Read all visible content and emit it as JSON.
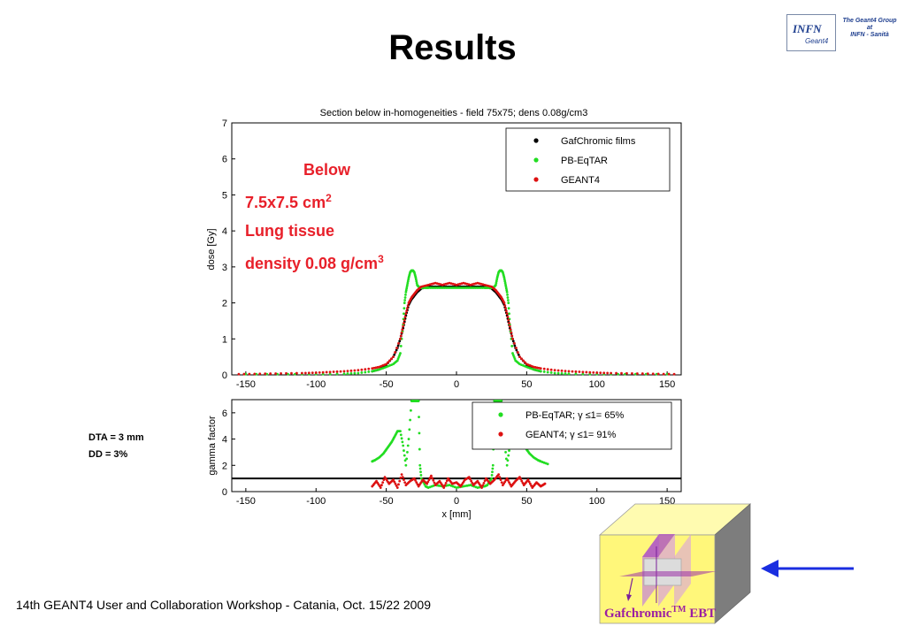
{
  "slide_title": "Results",
  "logo": {
    "infn": "INFN",
    "geant": "Geant4",
    "caption_lines": [
      "The Geant4 Group",
      "at",
      "INFN - Sanità"
    ]
  },
  "annotation": {
    "lines": [
      "Below",
      "7.5x7.5 cm",
      "Lung tissue",
      "density 0.08 g/cm"
    ],
    "superscripts": [
      "",
      "2",
      "",
      "3"
    ]
  },
  "criteria": [
    "DTA = 3 mm",
    "DD = 3%"
  ],
  "footer": "14th GEANT4 User and Collaboration Workshop - Catania, Oct. 15/22 2009",
  "film_caption": {
    "text": "Gafchromic",
    "sup": "TM",
    "suffix": " EBT"
  },
  "colors": {
    "annotation": "#e8202a",
    "films": "#000000",
    "pb": "#22dd22",
    "geant": "#dd1111",
    "arrow": "#1a2ee0",
    "film_caption": "#9b1fa2"
  },
  "icons": [
    "detector-phantom-icon",
    "beam-arrow-icon"
  ],
  "chart_data": [
    {
      "type": "scatter",
      "title": "Section below in-homogeneities  - field 75x75; dens 0.08g/cm3",
      "xlabel": "",
      "ylabel": "dose [Gy]",
      "xlim": [
        -160,
        160
      ],
      "ylim": [
        0,
        7
      ],
      "xticks": [
        -150,
        -100,
        -50,
        0,
        50,
        100,
        150
      ],
      "yticks": [
        0,
        1,
        2,
        3,
        4,
        5,
        6,
        7
      ],
      "legend_position": "top-right",
      "series": [
        {
          "name": "GafChromic films",
          "color": "#000000",
          "x": [
            -60,
            -55,
            -50,
            -45,
            -42,
            -40,
            -38,
            -36,
            -34,
            -32,
            -30,
            -28,
            -25,
            -20,
            -15,
            -10,
            -5,
            0,
            5,
            10,
            15,
            20,
            25,
            28,
            30,
            32,
            34,
            36,
            38,
            40,
            42,
            45,
            50,
            55,
            60
          ],
          "y": [
            0.1,
            0.15,
            0.28,
            0.5,
            0.75,
            1.0,
            1.3,
            1.65,
            1.95,
            2.1,
            2.2,
            2.3,
            2.4,
            2.45,
            2.45,
            2.45,
            2.45,
            2.45,
            2.45,
            2.45,
            2.45,
            2.45,
            2.4,
            2.3,
            2.2,
            2.1,
            1.95,
            1.65,
            1.3,
            1.0,
            0.75,
            0.5,
            0.28,
            0.15,
            0.1
          ]
        },
        {
          "name": "PB-EqTAR",
          "color": "#22dd22",
          "x": [
            -150,
            -120,
            -100,
            -80,
            -70,
            -60,
            -55,
            -50,
            -45,
            -42,
            -40,
            -38,
            -37,
            -36,
            -35,
            -34,
            -33,
            -32,
            -31,
            -30,
            -29,
            -28,
            -27,
            -26,
            -25,
            -22,
            -20,
            -15,
            -10,
            -5,
            0,
            5,
            10,
            15,
            20,
            22,
            25,
            26,
            27,
            28,
            29,
            30,
            31,
            32,
            33,
            34,
            35,
            36,
            37,
            38,
            40,
            42,
            45,
            50,
            55,
            60,
            70,
            80,
            100,
            120,
            150
          ],
          "y": [
            0.02,
            0.02,
            0.02,
            0.03,
            0.05,
            0.1,
            0.15,
            0.22,
            0.3,
            0.4,
            0.6,
            1.4,
            2.0,
            2.3,
            2.5,
            2.7,
            2.85,
            2.9,
            2.9,
            2.85,
            2.7,
            2.5,
            2.45,
            2.42,
            2.42,
            2.42,
            2.42,
            2.42,
            2.42,
            2.42,
            2.42,
            2.42,
            2.42,
            2.42,
            2.42,
            2.42,
            2.42,
            2.42,
            2.45,
            2.5,
            2.7,
            2.85,
            2.9,
            2.9,
            2.85,
            2.7,
            2.5,
            2.3,
            2.0,
            1.4,
            0.6,
            0.4,
            0.3,
            0.22,
            0.15,
            0.1,
            0.05,
            0.03,
            0.02,
            0.02,
            0.02
          ]
        },
        {
          "name": "GEANT4",
          "color": "#dd1111",
          "x": [
            -155,
            -140,
            -125,
            -110,
            -100,
            -90,
            -80,
            -70,
            -60,
            -55,
            -50,
            -45,
            -40,
            -38,
            -36,
            -34,
            -32,
            -30,
            -28,
            -25,
            -20,
            -15,
            -10,
            -5,
            0,
            5,
            10,
            15,
            20,
            25,
            28,
            30,
            32,
            34,
            36,
            38,
            40,
            45,
            50,
            55,
            60,
            70,
            80,
            90,
            100,
            110,
            125,
            140,
            155
          ],
          "y": [
            0.02,
            0.03,
            0.04,
            0.05,
            0.06,
            0.08,
            0.1,
            0.13,
            0.18,
            0.22,
            0.3,
            0.5,
            1.0,
            1.35,
            1.7,
            2.0,
            2.15,
            2.25,
            2.35,
            2.45,
            2.5,
            2.55,
            2.5,
            2.55,
            2.5,
            2.55,
            2.5,
            2.55,
            2.5,
            2.45,
            2.35,
            2.25,
            2.15,
            2.0,
            1.7,
            1.35,
            1.0,
            0.5,
            0.3,
            0.22,
            0.18,
            0.13,
            0.1,
            0.08,
            0.06,
            0.05,
            0.04,
            0.03,
            0.02
          ]
        }
      ]
    },
    {
      "type": "scatter",
      "title": "",
      "xlabel": "x [mm]",
      "ylabel": "gamma factor",
      "xlim": [
        -160,
        160
      ],
      "ylim": [
        0,
        7
      ],
      "xticks": [
        -150,
        -100,
        -50,
        0,
        50,
        100,
        150
      ],
      "yticks": [
        0,
        2,
        4,
        6
      ],
      "reference_line": 1,
      "legend_position": "top-right",
      "series": [
        {
          "name": "PB-EqTAR; γ ≤1= 65%",
          "color": "#22dd22",
          "x": [
            -60,
            -58,
            -55,
            -52,
            -50,
            -48,
            -46,
            -44,
            -42,
            -40,
            -38,
            -36,
            -34,
            -32,
            -31,
            -30,
            -29,
            -28,
            -27,
            -26,
            -25,
            -22,
            -20,
            -15,
            -10,
            -5,
            0,
            5,
            10,
            15,
            20,
            22,
            25,
            26,
            27,
            28,
            29,
            30,
            31,
            32,
            34,
            36,
            38,
            40,
            42,
            44,
            46,
            48,
            50,
            52,
            55,
            58,
            60,
            65
          ],
          "y": [
            2.3,
            2.4,
            2.6,
            2.9,
            3.2,
            3.5,
            3.8,
            4.2,
            4.6,
            4.6,
            3.5,
            2.0,
            4.0,
            6.9,
            6.9,
            6.9,
            6.9,
            6.9,
            6.9,
            2.0,
            1.0,
            0.4,
            0.3,
            0.5,
            0.4,
            0.5,
            0.3,
            0.4,
            0.5,
            0.3,
            0.4,
            0.5,
            1.0,
            2.0,
            6.9,
            6.9,
            6.9,
            6.9,
            6.9,
            6.9,
            4.0,
            2.0,
            3.5,
            4.6,
            4.6,
            4.2,
            3.8,
            3.5,
            3.2,
            2.9,
            2.6,
            2.4,
            2.3,
            2.1
          ]
        },
        {
          "name": "GEANT4; γ ≤1= 91%",
          "color": "#dd1111",
          "x": [
            -60,
            -57,
            -54,
            -51,
            -48,
            -45,
            -42,
            -39,
            -36,
            -33,
            -30,
            -27,
            -24,
            -21,
            -18,
            -15,
            -12,
            -9,
            -6,
            -3,
            0,
            3,
            6,
            9,
            12,
            15,
            18,
            21,
            24,
            27,
            30,
            33,
            36,
            39,
            42,
            45,
            48,
            51,
            54,
            57,
            60,
            63
          ],
          "y": [
            0.4,
            0.8,
            0.3,
            1.1,
            0.6,
            0.9,
            0.3,
            1.3,
            0.5,
            0.8,
            1.0,
            0.4,
            0.9,
            0.6,
            1.2,
            0.5,
            0.8,
            0.3,
            1.0,
            0.6,
            0.7,
            0.4,
            0.9,
            1.1,
            0.5,
            0.8,
            0.3,
            1.0,
            0.6,
            0.9,
            1.3,
            0.5,
            1.0,
            0.4,
            0.8,
            1.1,
            0.5,
            0.9,
            0.3,
            0.7,
            0.4,
            0.6
          ]
        }
      ]
    }
  ]
}
